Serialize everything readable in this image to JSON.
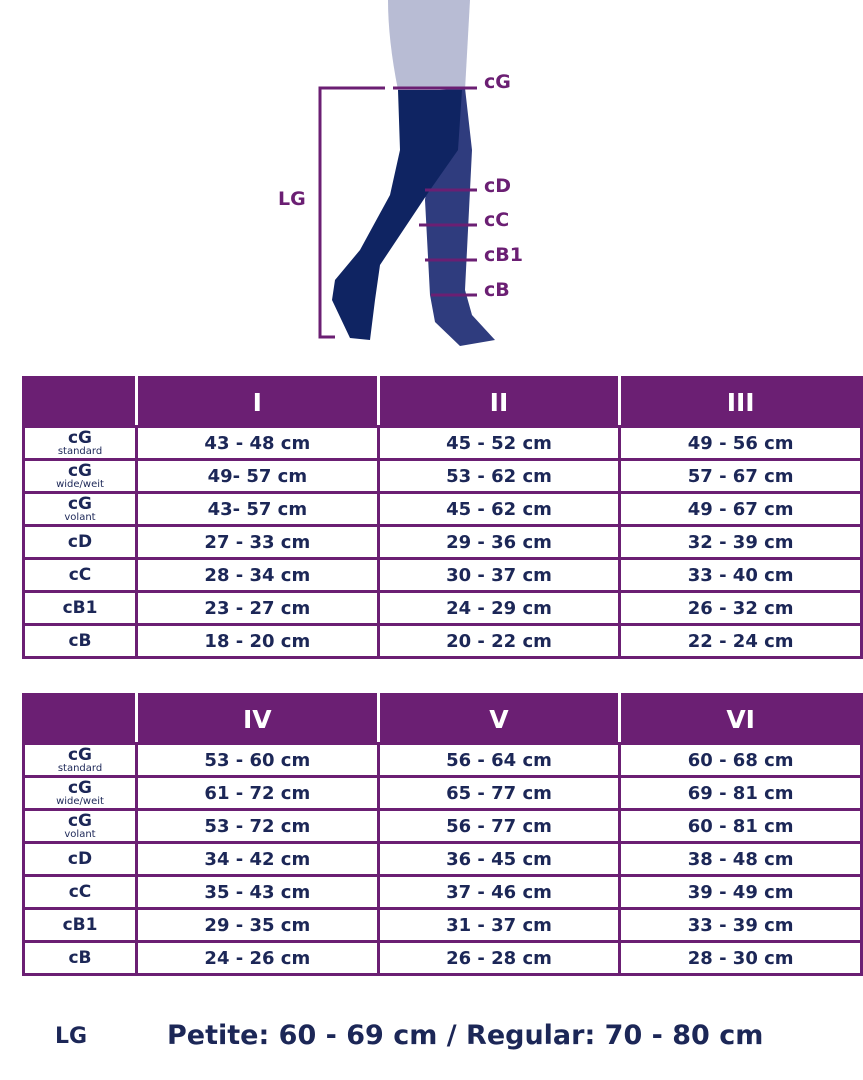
{
  "figure": {
    "labels": {
      "lg": "LG",
      "cg": "cG",
      "cd": "cD",
      "cc": "cC",
      "cb1": "cB1",
      "cb": "cB"
    }
  },
  "tables": [
    {
      "headers": [
        "",
        "I",
        "II",
        "III"
      ],
      "rows": [
        {
          "label": "cG",
          "sub": "standard",
          "values": [
            "43 - 48 cm",
            "45 - 52 cm",
            "49 - 56 cm"
          ]
        },
        {
          "label": "cG",
          "sub": "wide/weit",
          "values": [
            "49- 57 cm",
            "53 - 62 cm",
            "57 - 67 cm"
          ]
        },
        {
          "label": "cG",
          "sub": "volant",
          "values": [
            "43- 57 cm",
            "45 - 62 cm",
            "49 - 67 cm"
          ]
        },
        {
          "label": "cD",
          "sub": "",
          "values": [
            "27 - 33 cm",
            "29 - 36 cm",
            "32 - 39 cm"
          ]
        },
        {
          "label": "cC",
          "sub": "",
          "values": [
            "28 - 34 cm",
            "30 - 37 cm",
            "33 - 40 cm"
          ]
        },
        {
          "label": "cB1",
          "sub": "",
          "values": [
            "23 - 27 cm",
            "24 - 29 cm",
            "26 - 32 cm"
          ]
        },
        {
          "label": "cB",
          "sub": "",
          "values": [
            "18 - 20 cm",
            "20 - 22 cm",
            "22 - 24 cm"
          ]
        }
      ]
    },
    {
      "headers": [
        "",
        "IV",
        "V",
        "VI"
      ],
      "rows": [
        {
          "label": "cG",
          "sub": "standard",
          "values": [
            "53 - 60 cm",
            "56 - 64 cm",
            "60 - 68 cm"
          ]
        },
        {
          "label": "cG",
          "sub": "wide/weit",
          "values": [
            "61 - 72 cm",
            "65 - 77 cm",
            "69 - 81 cm"
          ]
        },
        {
          "label": "cG",
          "sub": "volant",
          "values": [
            "53 - 72 cm",
            "56 - 77 cm",
            "60 - 81 cm"
          ]
        },
        {
          "label": "cD",
          "sub": "",
          "values": [
            "34 - 42 cm",
            "36 - 45 cm",
            "38 - 48 cm"
          ]
        },
        {
          "label": "cC",
          "sub": "",
          "values": [
            "35 - 43 cm",
            "37 - 46 cm",
            "39 - 49 cm"
          ]
        },
        {
          "label": "cB1",
          "sub": "",
          "values": [
            "29 - 35 cm",
            "31 - 37 cm",
            "33 - 39 cm"
          ]
        },
        {
          "label": "cB",
          "sub": "",
          "values": [
            "24 - 26 cm",
            "26 - 28 cm",
            "28 - 30 cm"
          ]
        }
      ]
    }
  ],
  "footer": {
    "label": "LG",
    "text": "Petite: 60 - 69 cm / Regular: 70 - 80 cm"
  },
  "colors": {
    "purple": "#6b1f73",
    "navy": "#1c2757",
    "leg_dark": "#0f2462",
    "leg_light": "#2f3c7e",
    "skin": "#b8bcd4"
  }
}
